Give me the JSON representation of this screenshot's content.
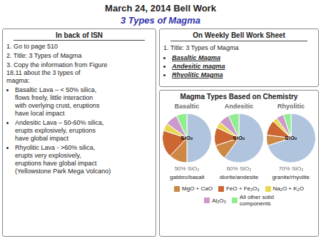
{
  "title": "March 24, 2014  Bell Work",
  "subtitle": "3 Types of Magma",
  "panels": [
    {
      "title": "In back of ISN",
      "items": [
        "1. Go to page 510",
        "2. Title: 3 Types of Magma",
        "3. Copy the information from Figure\n18.11 about the 3 types of\nmagma:"
      ],
      "bullets": [
        "Basaltic Lava – < 50% silica,\nflows freely, little interaction\nwith overlying crust, eruptions\nhave local impact",
        "Andesitic Lava – 50-60% silica,\nerupts explosively, eruptions\nhave global impact",
        "Rhyolitic Lava - >60% silica,\nerupts very explosively,\neruptions have global impact\n(Yellowstone Park Mega Volcano)"
      ]
    },
    {
      "title": "On Weekly Bell Work Sheet",
      "items": [
        "1. Title: 3 Types of Magma"
      ],
      "bullets": [
        "Basaltic Magma",
        "Andesitic magma",
        "Rhyolitic Magma"
      ]
    }
  ],
  "chart_title": "Magma Types Based on Chemistry",
  "chart_data": [
    {
      "type": "pie",
      "title": "Basaltic",
      "subtitle": "50% SiO₂",
      "xlabel": "gabbro/basalt",
      "annotations": [
        "SiO₂"
      ],
      "categories": [
        null,
        "MgO + CaO",
        "FeO + Fe₂O₃",
        "Na₂O + K₂O",
        "Al₂O₃",
        "All other solid\ncomponents"
      ],
      "values": [
        50,
        12,
        18,
        5,
        8,
        7
      ],
      "colors": [
        "#b0c4de",
        "#cc8844",
        "#cc6633",
        "#e8d850",
        "#cc99cc",
        "#90ee90"
      ],
      "legend": "bottom"
    },
    {
      "type": "pie",
      "title": "Andesitic",
      "subtitle": "60% SiO₂",
      "xlabel": "diorite/andesite",
      "annotations": [
        "SiO₂"
      ],
      "categories": [
        null,
        "MgO + CaO",
        "FeO + Fe₂O₃",
        "Na₂O + K₂O",
        "Al₂O₃",
        "All other solid\ncomponents"
      ],
      "values": [
        60,
        10,
        12,
        4,
        7,
        7
      ],
      "colors": [
        "#b0c4de",
        "#cc8844",
        "#cc6633",
        "#e8d850",
        "#cc99cc",
        "#90ee90"
      ],
      "legend": "bottom"
    },
    {
      "type": "pie",
      "title": "Rhyolitic",
      "subtitle": "70% SiO₂",
      "xlabel": "granite/rhyolite",
      "annotations": [
        "SiO₂"
      ],
      "categories": [
        null,
        "MgO + CaO",
        "FeO + Fe₂O₃",
        "Na₂O + K₂O",
        "Al₂O₃",
        "All other solid\ncomponents"
      ],
      "values": [
        70,
        7,
        10,
        3,
        5,
        5
      ],
      "colors": [
        "#b0c4de",
        "#cc8844",
        "#cc6633",
        "#e8d850",
        "#cc99cc",
        "#90ee90"
      ],
      "legend": "bottom"
    }
  ]
}
